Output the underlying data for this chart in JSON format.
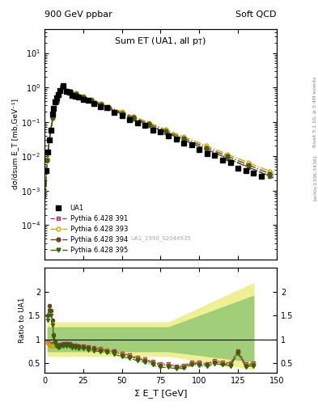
{
  "title_left": "900 GeV ppbar",
  "title_right": "Soft QCD",
  "plot_title": "Sum ET (UA1, all p_{T})",
  "ylabel_main": "dσ/dsum E_T [mb,GeV⁻¹]",
  "ylabel_ratio": "Ratio to UA1",
  "xlabel": "Σ E_T [GeV]",
  "right_label": "Rivet 3.1.10, ≥ 2.4M events",
  "watermark": "UA1_1990_S2044935",
  "arxiv": "[arXiv:1306.3436]",
  "ylim_main": [
    1e-05,
    50
  ],
  "ylim_ratio": [
    0.3,
    2.5
  ],
  "xlim": [
    0,
    150
  ],
  "legend_entries": [
    "UA1",
    "Pythia 6.428 391",
    "Pythia 6.428 393",
    "Pythia 6.428 394",
    "Pythia 6.428 395"
  ],
  "ua1_color": "#000000",
  "p391_color": "#aa3377",
  "p393_color": "#ccaa00",
  "p394_color": "#664422",
  "p395_color": "#336600",
  "band_yellow_color": "#eeee88",
  "band_green_color": "#99cc77",
  "bg_color": "#ffffff"
}
